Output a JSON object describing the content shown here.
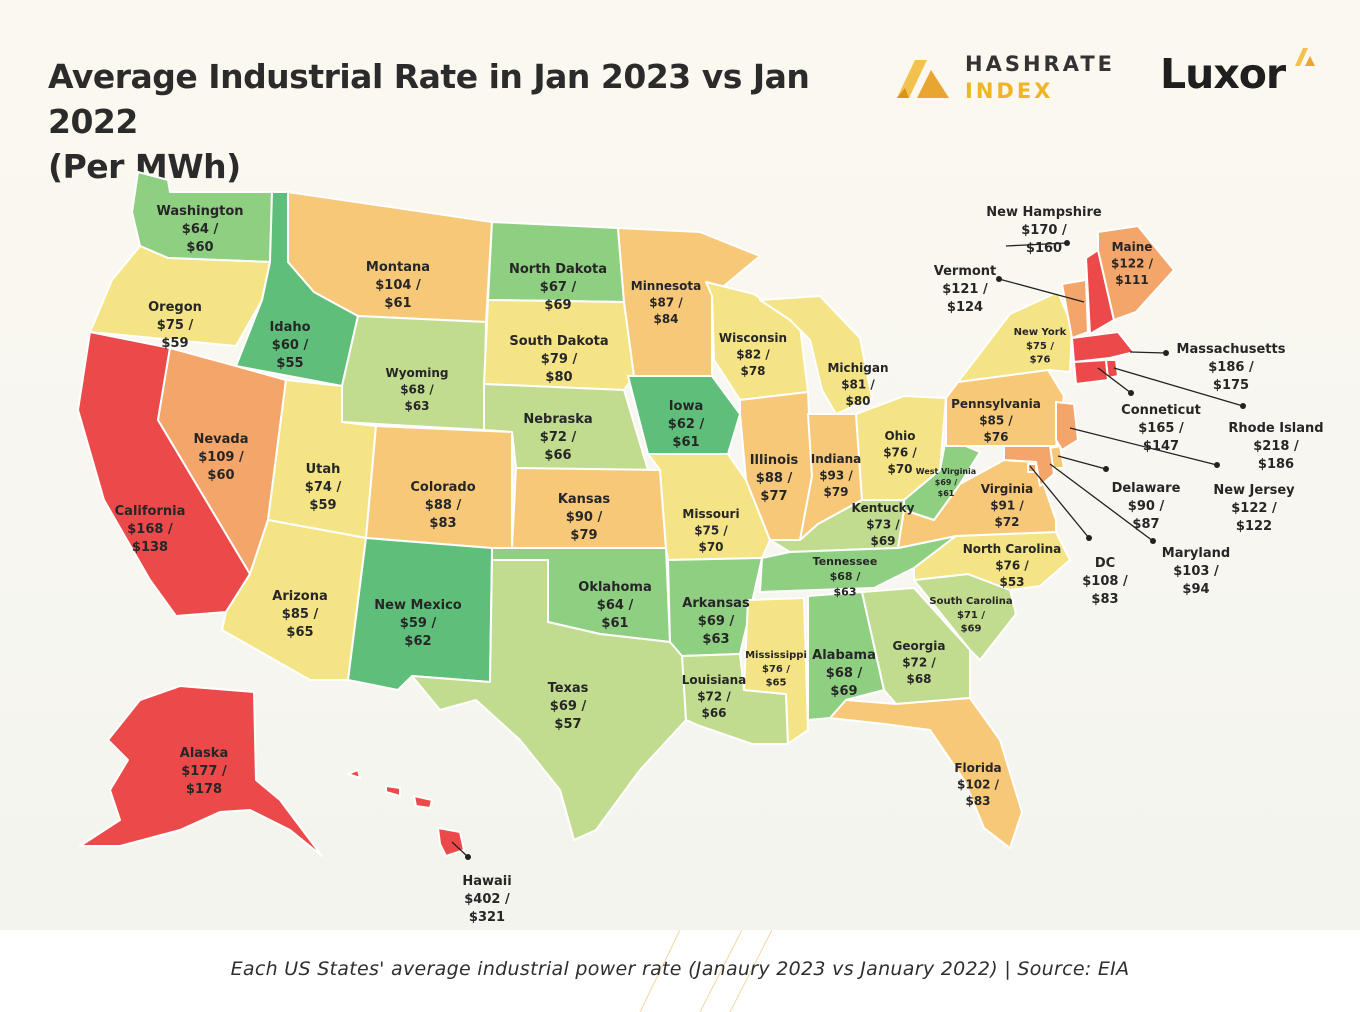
{
  "title_line1": "Average Industrial Rate in Jan 2023 vs Jan 2022",
  "title_line2": "(Per MWh)",
  "logos": {
    "hashrate_line1": "HASHRATE",
    "hashrate_line2": "INDEX",
    "luxor": "Luxor"
  },
  "caption": "Each US States' average industrial power rate (Janaury 2023 vs January 2022) | Source: EIA",
  "colors": {
    "cheapest_green": "#5fbf7a",
    "green": "#8fcf82",
    "light_green": "#c2dc8f",
    "yellow": "#f4e486",
    "light_orange": "#f8c879",
    "orange": "#f4a56a",
    "red": "#ec4a4a",
    "title": "#2b2b2b",
    "accent_gold": "#f0b429"
  },
  "states": [
    {
      "name": "Washington",
      "r2023": "$64",
      "r2022": "$60"
    },
    {
      "name": "Oregon",
      "r2023": "$75",
      "r2022": "$59"
    },
    {
      "name": "California",
      "r2023": "$168",
      "r2022": "$138"
    },
    {
      "name": "Idaho",
      "r2023": "$60",
      "r2022": "$55"
    },
    {
      "name": "Nevada",
      "r2023": "$109",
      "r2022": "$60"
    },
    {
      "name": "Montana",
      "r2023": "$104",
      "r2022": "$61"
    },
    {
      "name": "Wyoming",
      "r2023": "$68",
      "r2022": "$63"
    },
    {
      "name": "Utah",
      "r2023": "$74",
      "r2022": "$59"
    },
    {
      "name": "Arizona",
      "r2023": "$85",
      "r2022": "$65"
    },
    {
      "name": "Colorado",
      "r2023": "$88",
      "r2022": "$83"
    },
    {
      "name": "New Mexico",
      "r2023": "$59",
      "r2022": "$62"
    },
    {
      "name": "North Dakota",
      "r2023": "$67",
      "r2022": "$69"
    },
    {
      "name": "South Dakota",
      "r2023": "$79",
      "r2022": "$80"
    },
    {
      "name": "Nebraska",
      "r2023": "$72",
      "r2022": "$66"
    },
    {
      "name": "Kansas",
      "r2023": "$90",
      "r2022": "$79"
    },
    {
      "name": "Oklahoma",
      "r2023": "$64",
      "r2022": "$61"
    },
    {
      "name": "Texas",
      "r2023": "$69",
      "r2022": "$57"
    },
    {
      "name": "Minnesota",
      "r2023": "$87",
      "r2022": "$84"
    },
    {
      "name": "Iowa",
      "r2023": "$62",
      "r2022": "$61"
    },
    {
      "name": "Missouri",
      "r2023": "$75",
      "r2022": "$70"
    },
    {
      "name": "Arkansas",
      "r2023": "$69",
      "r2022": "$63"
    },
    {
      "name": "Louisiana",
      "r2023": "$72",
      "r2022": "$66"
    },
    {
      "name": "Wisconsin",
      "r2023": "$82",
      "r2022": "$78"
    },
    {
      "name": "Illinois",
      "r2023": "$88",
      "r2022": "$77"
    },
    {
      "name": "Michigan",
      "r2023": "$81",
      "r2022": "$80"
    },
    {
      "name": "Indiana",
      "r2023": "$93",
      "r2022": "$79"
    },
    {
      "name": "Ohio",
      "r2023": "$76",
      "r2022": "$70"
    },
    {
      "name": "Kentucky",
      "r2023": "$73",
      "r2022": "$69"
    },
    {
      "name": "Tennessee",
      "r2023": "$68",
      "r2022": "$63"
    },
    {
      "name": "Mississippi",
      "r2023": "$76",
      "r2022": "$65"
    },
    {
      "name": "Alabama",
      "r2023": "$68",
      "r2022": "$69"
    },
    {
      "name": "Georgia",
      "r2023": "$72",
      "r2022": "$68"
    },
    {
      "name": "Florida",
      "r2023": "$102",
      "r2022": "$83"
    },
    {
      "name": "South Carolina",
      "r2023": "$71",
      "r2022": "$69"
    },
    {
      "name": "North Carolina",
      "r2023": "$76",
      "r2022": "$53"
    },
    {
      "name": "Virginia",
      "r2023": "$91",
      "r2022": "$72"
    },
    {
      "name": "West Virginia",
      "r2023": "$69",
      "r2022": "$61"
    },
    {
      "name": "Pennsylvania",
      "r2023": "$85",
      "r2022": "$76"
    },
    {
      "name": "New York",
      "r2023": "$75",
      "r2022": "$76"
    },
    {
      "name": "Vermont",
      "r2023": "$121",
      "r2022": "$124"
    },
    {
      "name": "New Hampshire",
      "r2023": "$170",
      "r2022": "$160"
    },
    {
      "name": "Maine",
      "r2023": "$122",
      "r2022": "$111"
    },
    {
      "name": "Massachusetts",
      "r2023": "$186",
      "r2022": "$175"
    },
    {
      "name": "Conneticut",
      "r2023": "$165",
      "r2022": "$147"
    },
    {
      "name": "Rhode Island",
      "r2023": "$218",
      "r2022": "$186"
    },
    {
      "name": "New Jersey",
      "r2023": "$122",
      "r2022": "$122"
    },
    {
      "name": "Delaware",
      "r2023": "$90",
      "r2022": "$87"
    },
    {
      "name": "Maryland",
      "r2023": "$103",
      "r2022": "$94"
    },
    {
      "name": "DC",
      "r2023": "$108",
      "r2022": "$83"
    },
    {
      "name": "Alaska",
      "r2023": "$177",
      "r2022": "$178"
    },
    {
      "name": "Hawaii",
      "r2023": "$402",
      "r2022": "$321"
    }
  ]
}
